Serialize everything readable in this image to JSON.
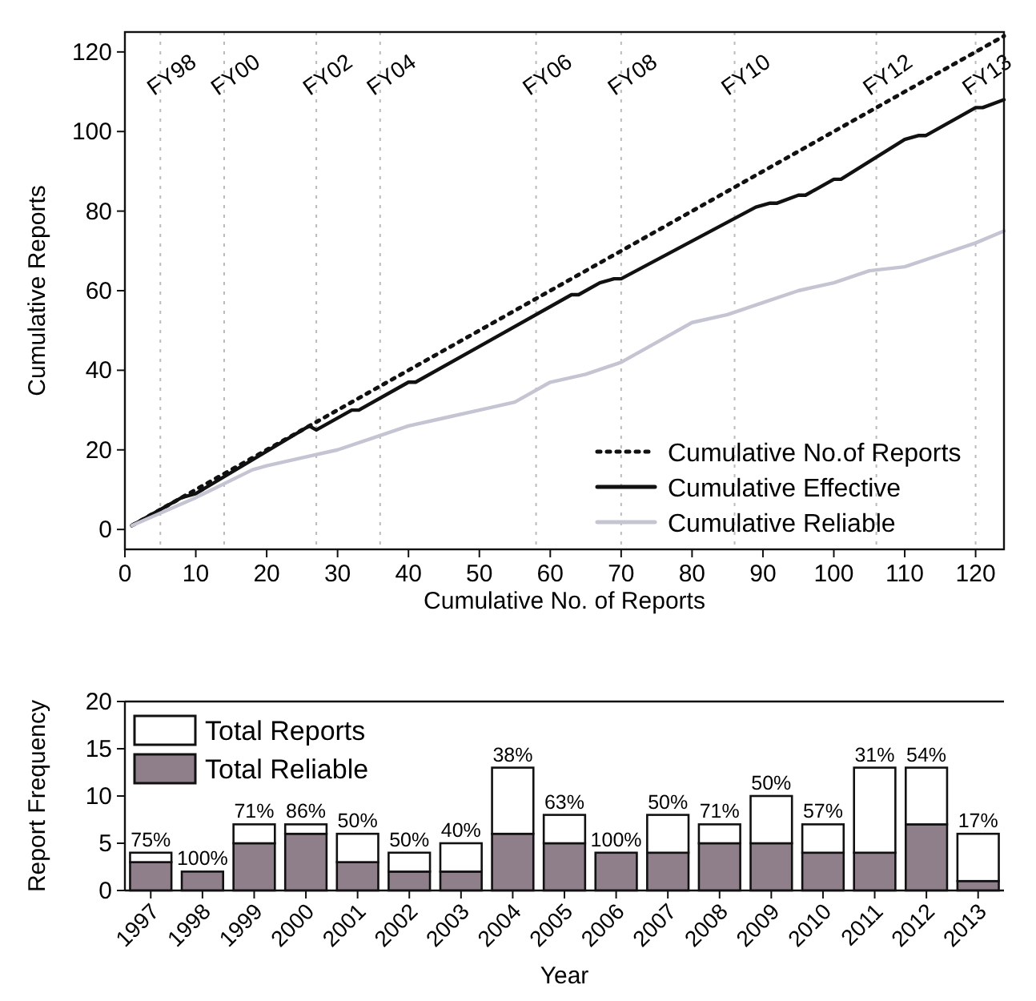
{
  "chart_data": [
    {
      "type": "line",
      "xlabel": "Cumulative No. of Reports",
      "ylabel": "Cumulative Reports",
      "xlim": [
        0,
        124
      ],
      "ylim": [
        -5,
        125
      ],
      "xticks": [
        0,
        10,
        20,
        30,
        40,
        50,
        60,
        70,
        80,
        90,
        100,
        110,
        120
      ],
      "yticks": [
        0,
        20,
        40,
        60,
        80,
        100,
        120
      ],
      "legend": "bottom right",
      "series": [
        {
          "name": "Cumulative No.of Reports",
          "color": "#111111",
          "line_style": "dotted",
          "x": [
            1,
            124
          ],
          "values": [
            1,
            124
          ]
        },
        {
          "name": "Cumulative Effective",
          "color": "#111111",
          "line_style": "solid",
          "x": [
            1,
            8,
            10,
            26,
            27,
            32,
            33,
            40,
            41,
            50,
            63,
            64,
            67,
            69,
            70,
            89,
            91,
            92,
            95,
            96,
            100,
            101,
            110,
            112,
            113,
            118,
            120,
            121,
            124
          ],
          "values": [
            1,
            8,
            9,
            26,
            25,
            30,
            30,
            37,
            37,
            46,
            59,
            59,
            62,
            63,
            63,
            81,
            82,
            82,
            84,
            84,
            88,
            88,
            98,
            99,
            99,
            104,
            106,
            106,
            108
          ]
        },
        {
          "name": "Cumulative Reliable",
          "color": "#c4c4d2",
          "line_style": "solid",
          "x": [
            1,
            10,
            18,
            20,
            25,
            30,
            35,
            40,
            45,
            50,
            55,
            60,
            65,
            70,
            75,
            80,
            85,
            90,
            95,
            100,
            105,
            110,
            115,
            120,
            124
          ],
          "values": [
            1,
            8,
            15,
            16,
            18,
            20,
            23,
            26,
            28,
            30,
            32,
            37,
            39,
            42,
            47,
            52,
            54,
            57,
            60,
            62,
            65,
            66,
            69,
            72,
            75
          ]
        }
      ],
      "ref_lines": [
        {
          "axis": "x",
          "value": 5,
          "label": "FY98",
          "color": "#bbbbbb",
          "line_style": "dotted"
        },
        {
          "axis": "x",
          "value": 14,
          "label": "FY00",
          "color": "#bbbbbb",
          "line_style": "dotted"
        },
        {
          "axis": "x",
          "value": 27,
          "label": "FY02",
          "color": "#bbbbbb",
          "line_style": "dotted"
        },
        {
          "axis": "x",
          "value": 36,
          "label": "FY04",
          "color": "#bbbbbb",
          "line_style": "dotted"
        },
        {
          "axis": "x",
          "value": 58,
          "label": "FY06",
          "color": "#bbbbbb",
          "line_style": "dotted"
        },
        {
          "axis": "x",
          "value": 70,
          "label": "FY08",
          "color": "#bbbbbb",
          "line_style": "dotted"
        },
        {
          "axis": "x",
          "value": 86,
          "label": "FY10",
          "color": "#bbbbbb",
          "line_style": "dotted"
        },
        {
          "axis": "x",
          "value": 106,
          "label": "FY12",
          "color": "#bbbbbb",
          "line_style": "dotted"
        },
        {
          "axis": "x",
          "value": 120,
          "label": "FY13",
          "color": "#bbbbbb",
          "line_style": "dotted"
        }
      ]
    },
    {
      "type": "bar",
      "stacked": true,
      "xlabel": "Year",
      "ylabel": "Report Frequency",
      "ylim": [
        0,
        20
      ],
      "yticks": [
        0,
        5,
        10,
        15,
        20
      ],
      "legend": "top left",
      "categories": [
        "1997",
        "1998",
        "1999",
        "2000",
        "2001",
        "2002",
        "2003",
        "2004",
        "2005",
        "2006",
        "2007",
        "2008",
        "2009",
        "2010",
        "2011",
        "2012",
        "2013"
      ],
      "series": [
        {
          "name": "Total Reliable",
          "color": "#8e7f8a",
          "values": [
            3,
            2,
            5,
            6,
            3,
            2,
            2,
            6,
            5,
            4,
            4,
            5,
            5,
            4,
            4,
            7,
            1
          ]
        },
        {
          "name": "Total Reports",
          "color": "#ffffff",
          "values": [
            1,
            0,
            2,
            1,
            3,
            2,
            3,
            7,
            3,
            0,
            4,
            2,
            5,
            3,
            9,
            6,
            5
          ]
        }
      ],
      "annotations": [
        {
          "text": "75%",
          "x": "1997",
          "y": 4
        },
        {
          "text": "100%",
          "x": "1998",
          "y": 2
        },
        {
          "text": "71%",
          "x": "1999",
          "y": 7
        },
        {
          "text": "86%",
          "x": "2000",
          "y": 7
        },
        {
          "text": "50%",
          "x": "2001",
          "y": 6
        },
        {
          "text": "50%",
          "x": "2002",
          "y": 4
        },
        {
          "text": "40%",
          "x": "2003",
          "y": 5
        },
        {
          "text": "38%",
          "x": "2004",
          "y": 13
        },
        {
          "text": "63%",
          "x": "2005",
          "y": 8
        },
        {
          "text": "100%",
          "x": "2006",
          "y": 4
        },
        {
          "text": "50%",
          "x": "2007",
          "y": 8
        },
        {
          "text": "71%",
          "x": "2008",
          "y": 7
        },
        {
          "text": "50%",
          "x": "2009",
          "y": 10
        },
        {
          "text": "57%",
          "x": "2010",
          "y": 7
        },
        {
          "text": "31%",
          "x": "2011",
          "y": 13
        },
        {
          "text": "54%",
          "x": "2012",
          "y": 13
        },
        {
          "text": "17%",
          "x": "2013",
          "y": 6
        }
      ]
    }
  ]
}
